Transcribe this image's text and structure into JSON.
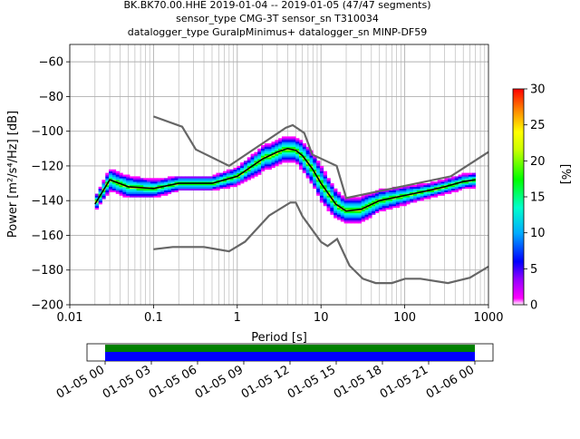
{
  "chart_data": {
    "type": "heatmap",
    "title_lines": [
      "BK.BK70.00.HHE   2019-01-04 -- 2019-01-05  (47/47 segments)",
      "sensor_type CMG-3T sensor_sn T310034",
      "datalogger_type GuralpMinimus+ datalogger_sn MINP-DF59"
    ],
    "xlabel": "Period [s]",
    "ylabel": "Power [m²/s⁴/Hz] [dB]",
    "x_scale": "log",
    "xlim": [
      0.01,
      1000
    ],
    "ylim": [
      -200,
      -50
    ],
    "x_ticks": [
      {
        "value": 0.01,
        "label": "0.01"
      },
      {
        "value": 0.1,
        "label": "0.1"
      },
      {
        "value": 1,
        "label": "1"
      },
      {
        "value": 10,
        "label": "10"
      },
      {
        "value": 100,
        "label": "100"
      },
      {
        "value": 1000,
        "label": "1000"
      }
    ],
    "y_ticks": [
      {
        "value": -60,
        "label": "−60"
      },
      {
        "value": -80,
        "label": "−80"
      },
      {
        "value": -100,
        "label": "−100"
      },
      {
        "value": -120,
        "label": "−120"
      },
      {
        "value": -140,
        "label": "−140"
      },
      {
        "value": -160,
        "label": "−160"
      },
      {
        "value": -180,
        "label": "−180"
      },
      {
        "value": -200,
        "label": "−200"
      }
    ],
    "grid": true,
    "colorbar": {
      "label": "[%]",
      "range": [
        0,
        30
      ],
      "ticks": [
        {
          "value": 0,
          "label": "0"
        },
        {
          "value": 5,
          "label": "5"
        },
        {
          "value": 10,
          "label": "10"
        },
        {
          "value": 15,
          "label": "15"
        },
        {
          "value": 20,
          "label": "20"
        },
        {
          "value": 25,
          "label": "25"
        },
        {
          "value": 30,
          "label": "30"
        }
      ]
    },
    "density": {
      "x": [
        0.02,
        0.03,
        0.05,
        0.1,
        0.2,
        0.3,
        0.5,
        1,
        2,
        3,
        4,
        5,
        6,
        8,
        10,
        15,
        20,
        30,
        50,
        100,
        200,
        300,
        500,
        700
      ],
      "center": [
        -142,
        -128,
        -132,
        -133,
        -130,
        -130,
        -130,
        -126,
        -116,
        -112,
        -110,
        -111,
        -114,
        -122,
        -130,
        -142,
        -146,
        -145,
        -140,
        -137,
        -134,
        -132,
        -129,
        -128
      ],
      "halfwidth": [
        4,
        6,
        6,
        5,
        4,
        4,
        4,
        5,
        7,
        7,
        7,
        7,
        8,
        9,
        10,
        8,
        7,
        7,
        6,
        5,
        4,
        4,
        4,
        4
      ]
    },
    "series": [
      {
        "role": "mode-line",
        "color": "#000000",
        "x": [
          0.02,
          0.03,
          0.05,
          0.1,
          0.2,
          0.3,
          0.5,
          1,
          2,
          3,
          4,
          5,
          6,
          8,
          10,
          15,
          20,
          30,
          50,
          100,
          200,
          300,
          500,
          700
        ],
        "y": [
          -142,
          -128,
          -132,
          -133,
          -130,
          -130,
          -130,
          -126,
          -116,
          -112,
          -110,
          -111,
          -114,
          -122,
          -130,
          -142,
          -146,
          -145,
          -140,
          -137,
          -134,
          -132,
          -129,
          -128
        ]
      },
      {
        "role": "NHNM",
        "color": "#666666",
        "x": [
          0.1,
          0.22,
          0.32,
          0.8,
          3.8,
          4.6,
          6.3,
          7.9,
          15.4,
          20,
          354.8,
          1000
        ],
        "y": [
          -91.5,
          -97.4,
          -110.5,
          -120,
          -98,
          -96.5,
          -101,
          -113.5,
          -120,
          -138.5,
          -126,
          -112
        ]
      },
      {
        "role": "NLNM",
        "color": "#666666",
        "x": [
          0.1,
          0.17,
          0.4,
          0.8,
          1.24,
          2.4,
          4.3,
          5,
          6,
          10,
          12,
          15.6,
          21.9,
          31.6,
          45,
          70,
          101,
          154,
          328,
          600,
          1000
        ],
        "y": [
          -168,
          -166.7,
          -166.7,
          -169.2,
          -163.7,
          -148.6,
          -141.1,
          -141.1,
          -149,
          -163.8,
          -166.2,
          -162.1,
          -177.5,
          -185,
          -187.5,
          -187.5,
          -185,
          -185,
          -187.5,
          -184.4,
          -178
        ]
      }
    ]
  },
  "timeline": {
    "tick_labels": [
      "01-05 00",
      "01-05 03",
      "01-05 06",
      "01-05 09",
      "01-05 12",
      "01-05 15",
      "01-05 18",
      "01-05 21",
      "01-06 00"
    ],
    "colors": {
      "top": "#008000",
      "bottom": "#0000ff"
    }
  }
}
